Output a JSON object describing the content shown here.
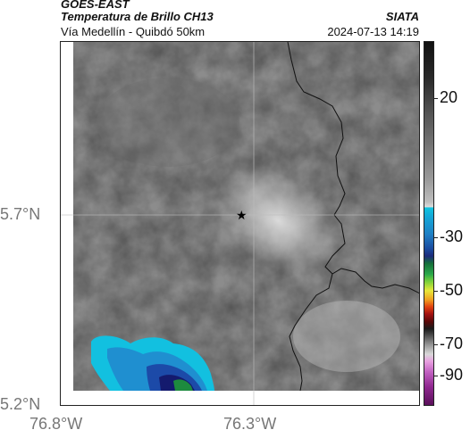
{
  "header": {
    "satellite": "GOES-EAST",
    "product": "Temperatura de Brillo CH13",
    "region": "Vía Medellín - Quibdó 50km",
    "agency": "SIATA",
    "datetime": "2024-07-13 14:19"
  },
  "axes": {
    "y_labels": [
      "5.7°N",
      "5.2°N"
    ],
    "x_labels": [
      "76.8°W",
      "76.3°W"
    ]
  },
  "colorbar": {
    "labels": [
      "20",
      "-30",
      "-50",
      "-70",
      "-90"
    ]
  },
  "map": {
    "marker": "star",
    "background_color": "#8a8a8a",
    "border_color": "#1a1a1a"
  }
}
